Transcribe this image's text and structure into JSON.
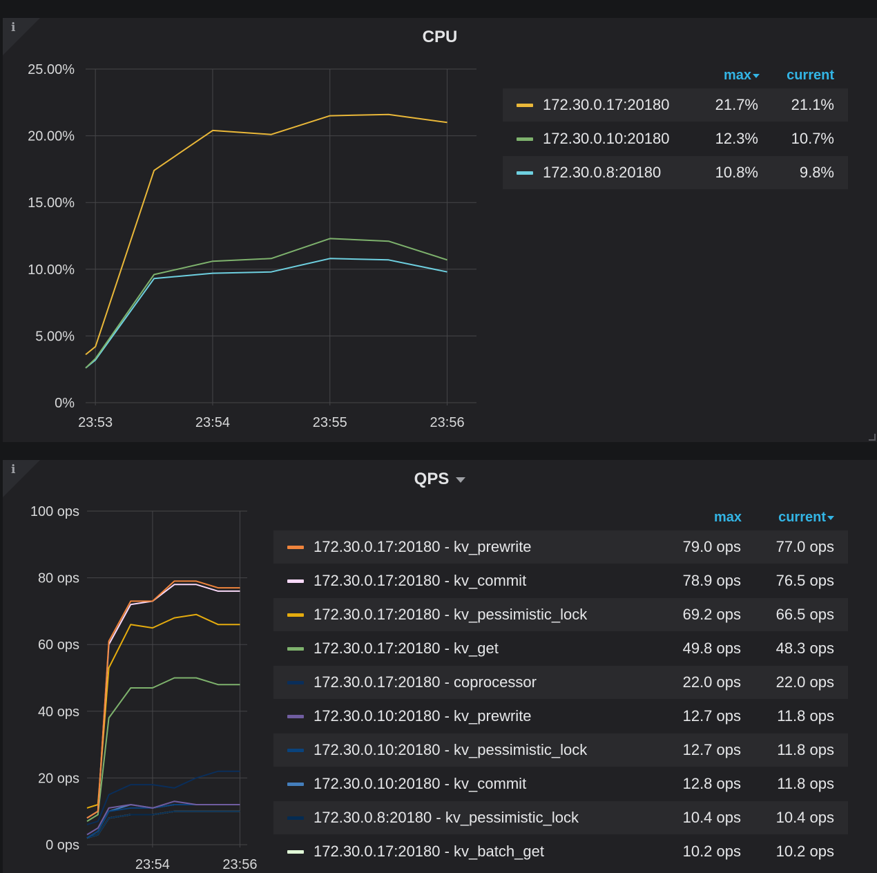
{
  "panels": {
    "cpu": {
      "title": "CPU",
      "info_icon": "i",
      "legend": {
        "headers": {
          "max": "max",
          "current": "current"
        },
        "sort": "max",
        "rows": [
          {
            "name": "172.30.0.17:20180",
            "max": "21.7%",
            "current": "21.1%",
            "color": "#eab839"
          },
          {
            "name": "172.30.0.10:20180",
            "max": "12.3%",
            "current": "10.7%",
            "color": "#7eb26d"
          },
          {
            "name": "172.30.0.8:20180",
            "max": "10.8%",
            "current": "9.8%",
            "color": "#6ed0e0"
          }
        ]
      }
    },
    "qps": {
      "title": "QPS",
      "info_icon": "i",
      "title_menu_icon": "caret-down-icon",
      "legend": {
        "headers": {
          "max": "max",
          "current": "current"
        },
        "sort": "current",
        "rows": [
          {
            "name": "172.30.0.17:20180 - kv_prewrite",
            "max": "79.0 ops",
            "current": "77.0 ops",
            "color": "#ef843c"
          },
          {
            "name": "172.30.0.17:20180 - kv_commit",
            "max": "78.9 ops",
            "current": "76.5 ops",
            "color": "#f9d9f9"
          },
          {
            "name": "172.30.0.17:20180 - kv_pessimistic_lock",
            "max": "69.2 ops",
            "current": "66.5 ops",
            "color": "#e5ac0e"
          },
          {
            "name": "172.30.0.17:20180 - kv_get",
            "max": "49.8 ops",
            "current": "48.3 ops",
            "color": "#7eb26d"
          },
          {
            "name": "172.30.0.17:20180 - coprocessor",
            "max": "22.0 ops",
            "current": "22.0 ops",
            "color": "#0a2e5a"
          },
          {
            "name": "172.30.0.10:20180 - kv_prewrite",
            "max": "12.7 ops",
            "current": "11.8 ops",
            "color": "#705da0"
          },
          {
            "name": "172.30.0.10:20180 - kv_pessimistic_lock",
            "max": "12.7 ops",
            "current": "11.8 ops",
            "color": "#0a437c"
          },
          {
            "name": "172.30.0.10:20180 - kv_commit",
            "max": "12.8 ops",
            "current": "11.8 ops",
            "color": "#447ebc"
          },
          {
            "name": "172.30.0.8:20180 - kv_pessimistic_lock",
            "max": "10.4 ops",
            "current": "10.4 ops",
            "color": "#052b51"
          },
          {
            "name": "172.30.0.17:20180 - kv_batch_get",
            "max": "10.2 ops",
            "current": "10.2 ops",
            "color": "#e0f9d7"
          }
        ]
      }
    }
  },
  "chart_data": [
    {
      "type": "line",
      "title": "CPU",
      "y_ticks": [
        "0%",
        "5.00%",
        "10.00%",
        "15.00%",
        "20.00%",
        "25.00%"
      ],
      "ylim": [
        0,
        25
      ],
      "x_ticks": [
        "23:53",
        "23:54",
        "23:55",
        "23:56"
      ],
      "x": [
        "23:52:55",
        "23:53:00",
        "23:53:30",
        "23:54:00",
        "23:54:30",
        "23:55:00",
        "23:55:30",
        "23:56:00"
      ],
      "grid": true,
      "legend_position": "right",
      "series": [
        {
          "name": "172.30.0.17:20180",
          "color": "#eab839",
          "values": [
            3.6,
            4.2,
            17.4,
            20.4,
            20.1,
            21.5,
            21.6,
            21.0
          ]
        },
        {
          "name": "172.30.0.10:20180",
          "color": "#7eb26d",
          "values": [
            2.6,
            3.3,
            9.6,
            10.6,
            10.8,
            12.3,
            12.1,
            10.7
          ]
        },
        {
          "name": "172.30.0.8:20180",
          "color": "#6ed0e0",
          "values": [
            2.6,
            3.2,
            9.3,
            9.7,
            9.8,
            10.8,
            10.7,
            9.8
          ]
        }
      ]
    },
    {
      "type": "line",
      "title": "QPS",
      "y_ticks": [
        "0 ops",
        "20 ops",
        "40 ops",
        "60 ops",
        "80 ops",
        "100 ops"
      ],
      "ylim": [
        0,
        100
      ],
      "x_ticks": [
        "23:54",
        "23:56"
      ],
      "x": [
        "23:52:30",
        "23:52:45",
        "23:53:00",
        "23:53:30",
        "23:54:00",
        "23:54:30",
        "23:55:00",
        "23:55:30",
        "23:56:00"
      ],
      "grid": true,
      "legend_position": "right",
      "series": [
        {
          "name": "172.30.0.17:20180 - kv_prewrite",
          "color": "#ef843c",
          "values": [
            8,
            10,
            61,
            73,
            73,
            79,
            79,
            77,
            77
          ]
        },
        {
          "name": "172.30.0.17:20180 - kv_commit",
          "color": "#f9d9f9",
          "values": [
            8,
            10,
            60,
            72,
            73,
            78,
            78,
            76,
            76
          ]
        },
        {
          "name": "172.30.0.17:20180 - kv_pessimistic_lock",
          "color": "#e5ac0e",
          "values": [
            11,
            12,
            53,
            66,
            65,
            68,
            69,
            66,
            66
          ]
        },
        {
          "name": "172.30.0.17:20180 - kv_get",
          "color": "#7eb26d",
          "values": [
            7,
            9,
            38,
            47,
            47,
            50,
            50,
            48,
            48
          ]
        },
        {
          "name": "172.30.0.17:20180 - coprocessor",
          "color": "#0a2e5a",
          "values": [
            6,
            7,
            15,
            18,
            18,
            17,
            20,
            22,
            22
          ]
        },
        {
          "name": "172.30.0.10:20180 - kv_prewrite",
          "color": "#705da0",
          "values": [
            3,
            5,
            11,
            12,
            11,
            13,
            12,
            12,
            12
          ]
        },
        {
          "name": "172.30.0.10:20180 - kv_pessimistic_lock",
          "color": "#0a437c",
          "values": [
            2,
            4,
            10,
            11,
            11,
            12,
            12,
            12,
            12
          ]
        },
        {
          "name": "172.30.0.10:20180 - kv_commit",
          "color": "#447ebc",
          "values": [
            2,
            4,
            10,
            12,
            11,
            12,
            12,
            12,
            12
          ]
        },
        {
          "name": "172.30.0.8:20180 - kv_pessimistic_lock",
          "color": "#052b51",
          "values": [
            2,
            3,
            8,
            9,
            9,
            10,
            10,
            10,
            10
          ]
        },
        {
          "name": "172.30.0.17:20180 - kv_batch_get",
          "color": "#e0f9d7",
          "values": [
            2,
            3,
            8,
            9,
            9,
            10,
            10,
            10,
            10
          ]
        }
      ]
    }
  ]
}
